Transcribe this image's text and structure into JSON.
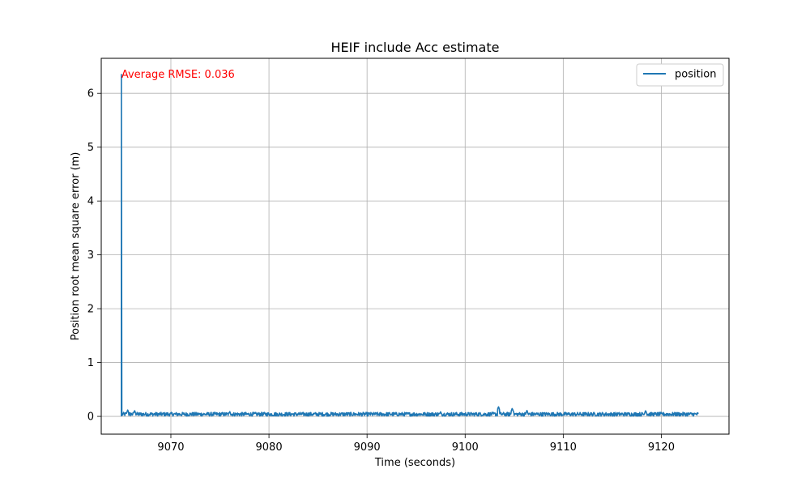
{
  "chart_data": {
    "type": "line",
    "title": "HEIF include Acc estimate",
    "xlabel": "Time (seconds)",
    "ylabel": "Position root mean square error (m)",
    "xlim": [
      9062.9,
      9126.9
    ],
    "ylim": [
      -0.33,
      6.65
    ],
    "xticks": [
      9070,
      9080,
      9090,
      9100,
      9110,
      9120
    ],
    "yticks": [
      0,
      1,
      2,
      3,
      4,
      5,
      6
    ],
    "grid": true,
    "legend_position": "top-right",
    "annotation": {
      "text": "Average RMSE: 0.036",
      "x": 9064.95,
      "y": 6.32,
      "color": "#ff0000"
    },
    "series": [
      {
        "name": "position",
        "color": "#1f77b4",
        "spike": {
          "x": 9064.95,
          "y": 6.35
        },
        "x_start": 9064.95,
        "x_end": 9123.8,
        "baseline": 0.04,
        "noise_amplitude": 0.05,
        "peaks": [
          {
            "x": 9065.6,
            "y": 0.12
          },
          {
            "x": 9066.3,
            "y": 0.11
          },
          {
            "x": 9076.0,
            "y": 0.09
          },
          {
            "x": 9097.5,
            "y": 0.09
          },
          {
            "x": 9103.4,
            "y": 0.18
          },
          {
            "x": 9104.8,
            "y": 0.15
          },
          {
            "x": 9106.3,
            "y": 0.11
          },
          {
            "x": 9118.4,
            "y": 0.11
          }
        ]
      }
    ]
  }
}
